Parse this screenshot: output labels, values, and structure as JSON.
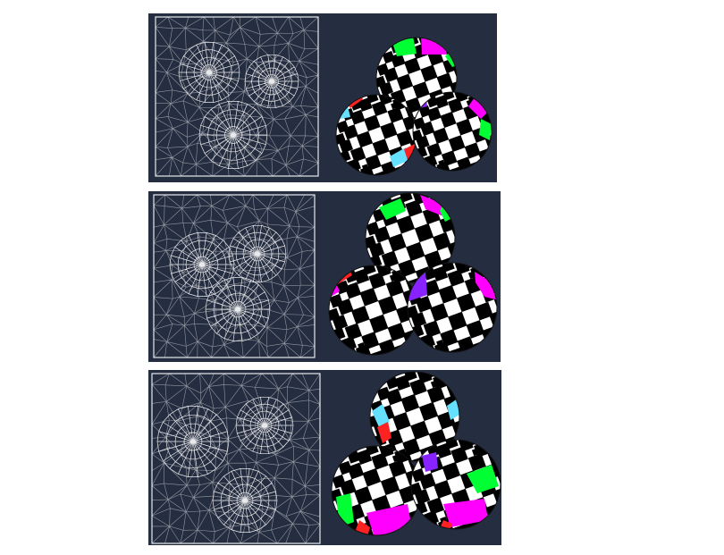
{
  "figure": {
    "panels": [
      {
        "mesh": "uv-triangle-mesh",
        "render": "three-spheres-checkerboard"
      },
      {
        "mesh": "uv-triangle-mesh",
        "render": "three-spheres-checkerboard"
      },
      {
        "mesh": "uv-triangle-mesh",
        "render": "three-spheres-checkerboard"
      }
    ],
    "colors": {
      "background": "#252d40",
      "mesh_line": "#ffffff",
      "checker_dark": "#000000",
      "checker_light": "#ffffff",
      "seam_magenta": "#ff00ff",
      "seam_green": "#00ff33",
      "seam_red": "#ff2222",
      "seam_cyan": "#66e0ff",
      "seam_purple": "#8822ff"
    }
  }
}
